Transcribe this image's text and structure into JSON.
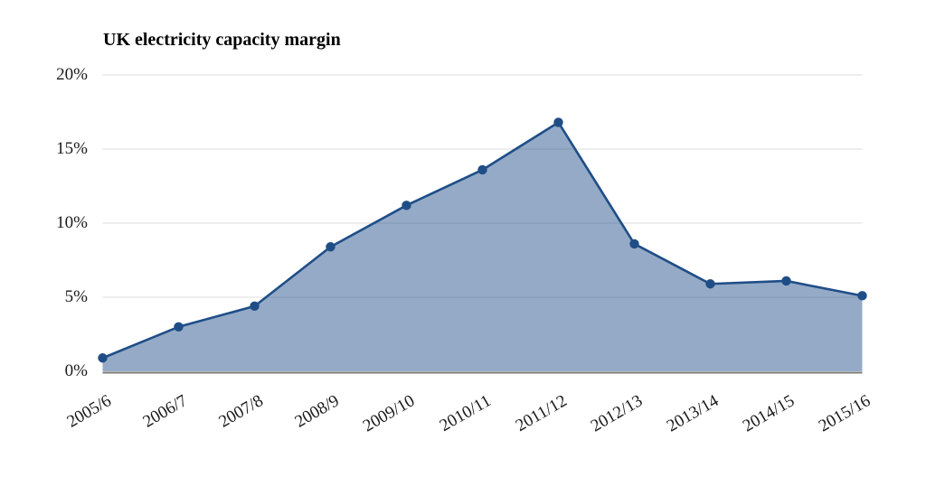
{
  "chart_data": {
    "type": "area",
    "title": "UK electricity capacity margin",
    "categories": [
      "2005/6",
      "2006/7",
      "2007/8",
      "2008/9",
      "2009/10",
      "2010/11",
      "2011/12",
      "2012/13",
      "2013/14",
      "2014/15",
      "2015/16"
    ],
    "values": [
      0.9,
      3.0,
      4.4,
      8.4,
      11.2,
      13.6,
      16.8,
      8.6,
      5.9,
      6.1,
      5.1
    ],
    "xlabel": "",
    "ylabel": "",
    "ylim": [
      0,
      20
    ],
    "y_ticks": [
      {
        "value": 0,
        "label": "0%"
      },
      {
        "value": 5,
        "label": "5%"
      },
      {
        "value": 10,
        "label": "10%"
      },
      {
        "value": 15,
        "label": "15%"
      },
      {
        "value": 20,
        "label": "20%"
      }
    ],
    "x_tick_rotation_deg": 30,
    "grid": "horizontal",
    "legend": "none",
    "markers": "filled-circle",
    "colors": {
      "line": "#1f4e87",
      "marker": "#1f4e87",
      "fill": "#1f4e87",
      "fill_opacity": 0.48,
      "gridline": "#dcdcdc",
      "baseline": "#7a7a7a",
      "tick_text": "#1a1a1a",
      "title_text": "#000000",
      "background": "#ffffff"
    }
  }
}
